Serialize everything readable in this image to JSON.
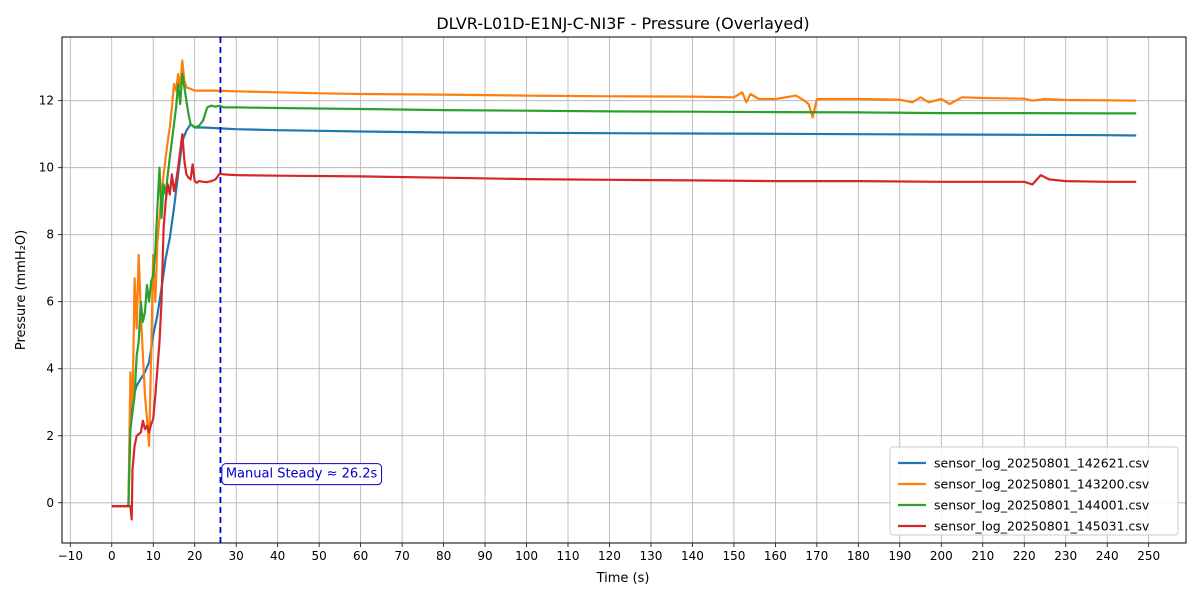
{
  "chart_data": {
    "type": "line",
    "title": "DLVR-L01D-E1NJ-C-NI3F - Pressure (Overlayed)",
    "xlabel": "Time (s)",
    "ylabel": "Pressure (mmH₂O)",
    "xlim": [
      -12,
      259
    ],
    "ylim": [
      -1.2,
      13.9
    ],
    "x_ticks": [
      -10,
      0,
      10,
      20,
      30,
      40,
      50,
      60,
      70,
      80,
      90,
      100,
      110,
      120,
      130,
      140,
      150,
      160,
      170,
      180,
      190,
      200,
      210,
      220,
      230,
      240,
      250
    ],
    "y_ticks": [
      0,
      2,
      4,
      6,
      8,
      10,
      12
    ],
    "grid": true,
    "legend_position": "lower-right",
    "series": [
      {
        "name": "sensor_log_20250801_142621.csv",
        "color": "#1f77b4",
        "x": [
          0,
          4,
          4.5,
          5,
          6,
          7,
          8,
          9,
          10,
          11,
          12,
          13,
          14,
          15,
          16,
          17,
          18,
          19,
          20,
          22,
          25,
          30,
          40,
          50,
          60,
          80,
          100,
          120,
          140,
          160,
          180,
          200,
          220,
          240,
          247
        ],
        "y": [
          -0.1,
          -0.1,
          2.6,
          3.1,
          3.5,
          3.7,
          3.9,
          4.2,
          5.0,
          5.6,
          6.4,
          7.3,
          7.9,
          8.8,
          9.8,
          10.8,
          11.1,
          11.3,
          11.2,
          11.2,
          11.18,
          11.15,
          11.12,
          11.1,
          11.08,
          11.05,
          11.04,
          11.03,
          11.02,
          11.01,
          11.0,
          10.99,
          10.98,
          10.97,
          10.96
        ]
      },
      {
        "name": "sensor_log_20250801_143200.csv",
        "color": "#ff7f0e",
        "x": [
          0,
          4,
          4.5,
          5,
          5.5,
          6,
          6.5,
          7,
          7.5,
          8,
          8.5,
          9,
          9.5,
          10,
          10.5,
          11,
          11.5,
          12,
          12.5,
          13,
          13.5,
          14,
          14.5,
          15,
          15.5,
          16,
          16.5,
          17,
          17.5,
          18,
          19,
          20,
          25,
          30,
          40,
          50,
          60,
          80,
          100,
          120,
          140,
          150,
          152,
          153,
          154,
          156,
          160,
          165,
          167,
          168,
          169,
          170,
          175,
          180,
          190,
          193,
          195,
          197,
          200,
          202,
          205,
          210,
          220,
          222,
          225,
          230,
          240,
          247
        ],
        "y": [
          -0.1,
          -0.1,
          3.9,
          2.8,
          6.7,
          5.2,
          7.4,
          5.7,
          4.4,
          3.2,
          2.5,
          1.7,
          4.5,
          7.4,
          6.0,
          7.8,
          8.5,
          9.2,
          9.8,
          10.3,
          10.8,
          11.2,
          11.8,
          12.5,
          12.3,
          12.8,
          12.4,
          13.2,
          12.6,
          12.4,
          12.35,
          12.3,
          12.3,
          12.28,
          12.25,
          12.22,
          12.2,
          12.18,
          12.15,
          12.13,
          12.12,
          12.1,
          12.25,
          11.95,
          12.2,
          12.05,
          12.05,
          12.15,
          12.0,
          11.9,
          11.5,
          12.05,
          12.05,
          12.05,
          12.03,
          11.95,
          12.1,
          11.95,
          12.05,
          11.9,
          12.1,
          12.08,
          12.06,
          12.0,
          12.05,
          12.02,
          12.01,
          12.0
        ]
      },
      {
        "name": "sensor_log_20250801_144001.csv",
        "color": "#2ca02c",
        "x": [
          0,
          4,
          4.5,
          5,
          5.5,
          6,
          6.5,
          7,
          7.5,
          8,
          8.5,
          9,
          9.5,
          10,
          10.5,
          11,
          11.5,
          12,
          12.5,
          13,
          13.5,
          14,
          14.5,
          15,
          15.5,
          16,
          16.5,
          17,
          17.5,
          18,
          18.5,
          19,
          19.5,
          20,
          21,
          22,
          23,
          24,
          25,
          26,
          27,
          30,
          40,
          60,
          80,
          100,
          120,
          140,
          160,
          180,
          200,
          220,
          240,
          247
        ],
        "y": [
          -0.1,
          -0.1,
          2.2,
          2.7,
          3.2,
          4.4,
          4.8,
          6.0,
          5.4,
          5.7,
          6.5,
          6.0,
          6.6,
          6.8,
          7.5,
          8.8,
          10.0,
          8.5,
          9.5,
          9.2,
          9.8,
          10.3,
          10.8,
          11.3,
          11.8,
          12.5,
          11.9,
          12.8,
          12.4,
          12.0,
          11.6,
          11.3,
          11.25,
          11.2,
          11.25,
          11.4,
          11.8,
          11.85,
          11.82,
          11.85,
          11.8,
          11.8,
          11.78,
          11.75,
          11.72,
          11.7,
          11.68,
          11.67,
          11.66,
          11.65,
          11.63,
          11.63,
          11.62,
          11.62
        ]
      },
      {
        "name": "sensor_log_20250801_145031.csv",
        "color": "#d62728",
        "x": [
          0,
          4,
          4.5,
          4.8,
          5,
          5.5,
          6,
          6.5,
          7,
          7.5,
          8,
          8.5,
          9,
          9.5,
          10,
          10.5,
          11,
          11.5,
          12,
          12.5,
          13,
          13.5,
          14,
          14.5,
          15,
          15.5,
          16,
          16.5,
          17,
          17.5,
          18,
          18.5,
          19,
          19.5,
          20,
          20.5,
          21,
          22,
          23,
          24,
          25,
          26,
          27,
          30,
          40,
          60,
          80,
          100,
          120,
          140,
          160,
          180,
          200,
          220,
          222,
          224,
          226,
          230,
          240,
          247
        ],
        "y": [
          -0.1,
          -0.1,
          -0.1,
          -0.5,
          1.0,
          1.7,
          2.0,
          2.05,
          2.1,
          2.45,
          2.2,
          2.3,
          2.1,
          2.35,
          2.5,
          3.2,
          4.0,
          4.8,
          6.0,
          8.2,
          9.0,
          9.5,
          9.2,
          9.8,
          9.3,
          9.6,
          10.0,
          10.5,
          11.0,
          10.2,
          9.8,
          9.7,
          9.65,
          10.1,
          9.6,
          9.55,
          9.6,
          9.58,
          9.57,
          9.6,
          9.65,
          9.82,
          9.8,
          9.78,
          9.76,
          9.74,
          9.7,
          9.66,
          9.64,
          9.62,
          9.6,
          9.6,
          9.58,
          9.58,
          9.5,
          9.78,
          9.65,
          9.6,
          9.58,
          9.58
        ]
      }
    ],
    "annotations": [
      {
        "type": "vline",
        "x": 26.2,
        "color": "#0000cc",
        "style": "dashed"
      },
      {
        "type": "text",
        "text": "Manual Steady ≈ 26.2s",
        "x": 27.5,
        "y": 0.75,
        "color": "#0000cc"
      }
    ]
  }
}
